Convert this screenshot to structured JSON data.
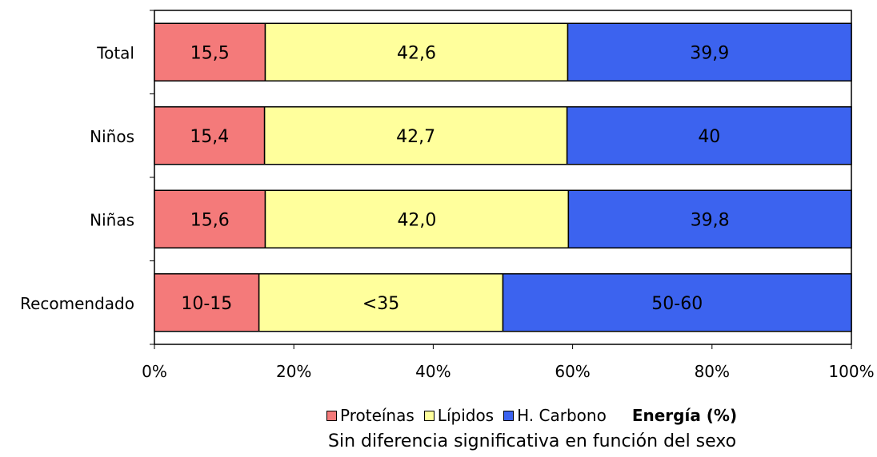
{
  "chart_data": {
    "type": "bar",
    "orientation": "horizontal",
    "stacked": true,
    "categories": [
      "Total",
      "Niños",
      "Niñas",
      "Recomendado"
    ],
    "series": [
      {
        "name": "Proteínas",
        "color": "#f47a7a",
        "values": [
          15.9,
          15.8,
          15.9,
          15.0
        ],
        "labels": [
          "15,5",
          "15,4",
          "15,6",
          "10-15"
        ]
      },
      {
        "name": "Lípidos",
        "color": "#ffff9c",
        "values": [
          43.4,
          43.4,
          43.5,
          35.0
        ],
        "labels": [
          "42,6",
          "42,7",
          "42,0",
          "<35"
        ]
      },
      {
        "name": "H. Carbono",
        "color": "#3c63ef",
        "values": [
          40.7,
          40.8,
          40.6,
          50.0
        ],
        "labels": [
          "39,9",
          "40",
          "39,8",
          "50-60"
        ]
      }
    ],
    "xlim": [
      0,
      100
    ],
    "xticks": [
      "0%",
      "20%",
      "40%",
      "60%",
      "80%",
      "100%"
    ],
    "xlabel": "Energía (%)",
    "ylabel": "",
    "title": "",
    "legend_position": "bottom",
    "grid": false
  },
  "legend": {
    "items": [
      {
        "label": "Proteínas",
        "color": "#f47a7a"
      },
      {
        "label": "Lípidos",
        "color": "#ffff9c"
      },
      {
        "label": "H. Carbono",
        "color": "#3c63ef"
      }
    ]
  },
  "xlabel": "Energía (%)",
  "note": "Sin diferencia significativa en función del sexo"
}
